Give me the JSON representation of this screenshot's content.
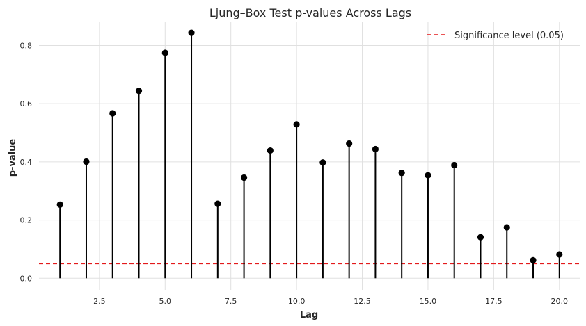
{
  "chart_data": {
    "type": "stem",
    "title": "Ljung–Box Test p-values Across Lags",
    "xlabel": "Lag",
    "ylabel": "p-value",
    "xlim": [
      0.2,
      20.8
    ],
    "ylim": [
      -0.04,
      0.88
    ],
    "x_ticks": [
      2.5,
      5.0,
      7.5,
      10.0,
      12.5,
      15.0,
      17.5,
      20.0
    ],
    "x_tick_labels": [
      "2.5",
      "5.0",
      "7.5",
      "10.0",
      "12.5",
      "15.0",
      "17.5",
      "20.0"
    ],
    "y_ticks": [
      0.0,
      0.2,
      0.4,
      0.6,
      0.8
    ],
    "y_tick_labels": [
      "0.0",
      "0.2",
      "0.4",
      "0.6",
      "0.8"
    ],
    "grid": true,
    "legend_position": "top-right",
    "series": [
      {
        "x": [
          1,
          2,
          3,
          4,
          5,
          6,
          7,
          8,
          9,
          10,
          11,
          12,
          13,
          14,
          15,
          16,
          17,
          18,
          19,
          20
        ],
        "values": [
          0.253,
          0.401,
          0.567,
          0.644,
          0.775,
          0.844,
          0.256,
          0.346,
          0.439,
          0.529,
          0.398,
          0.463,
          0.444,
          0.362,
          0.354,
          0.389,
          0.141,
          0.175,
          0.062,
          0.082
        ],
        "color": "#000000"
      },
      {
        "name": "Significance level (0.05)",
        "type": "hline",
        "value": 0.05,
        "style": "dashed",
        "color": "#e31a1c"
      }
    ]
  }
}
